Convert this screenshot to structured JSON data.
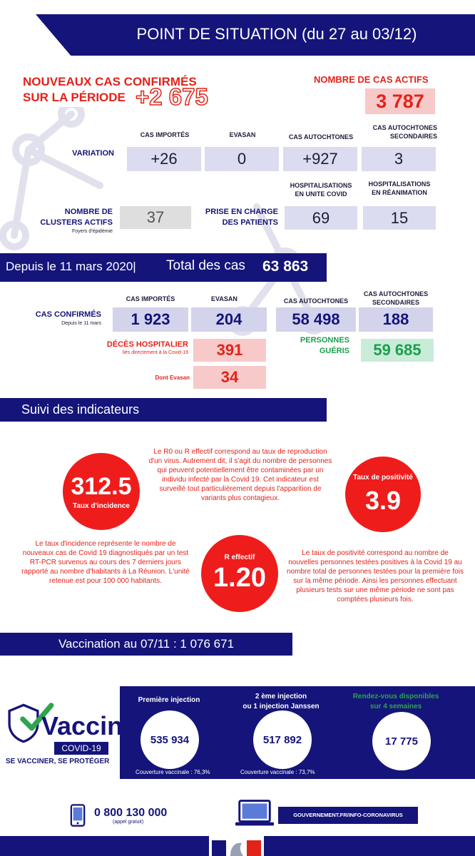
{
  "header": {
    "title": "POINT DE SITUATION (du 27 au 03/12)"
  },
  "period": {
    "new_cases_label_1": "NOUVEAUX CAS CONFIRMÉS",
    "new_cases_label_2": "SUR LA PÉRIODE",
    "new_cases_value": "+2 675",
    "active_label": "NOMBRE DE CAS ACTIFS",
    "active_value": "3 787",
    "col_imported": "CAS IMPORTÉS",
    "col_evasan": "EVASAN",
    "col_autochtones": "CAS AUTOCHTONES",
    "col_secondaires_1": "CAS AUTOCHTONES",
    "col_secondaires_2": "SECONDAIRES",
    "variation_label": "VARIATION",
    "variation_imported": "+26",
    "variation_evasan": "0",
    "variation_autochtones": "+927",
    "variation_secondaires": "3",
    "hosp_covid_1": "HOSPITALISATIONS",
    "hosp_covid_2": "EN UNITE COVID",
    "hosp_rea_1": "HOSPITALISATIONS",
    "hosp_rea_2": "EN RÉANIMATION",
    "clusters_label_1": "NOMBRE DE",
    "clusters_label_2": "CLUSTERS ACTIFS",
    "clusters_sub": "Foyers d'épidémie",
    "clusters_value": "37",
    "prise_label_1": "PRISE EN CHARGE",
    "prise_label_2": "DES PATIENTS",
    "hosp_covid_value": "69",
    "hosp_rea_value": "15"
  },
  "total": {
    "since_label": "Depuis le 11 mars 2020",
    "total_label": "Total des cas",
    "total_value": "63 863",
    "col_imported": "CAS IMPORTÉS",
    "col_evasan": "EVASAN",
    "col_autochtones": "CAS AUTOCHTONES",
    "col_secondaires_1": "CAS AUTOCHTONES",
    "col_secondaires_2": "SECONDAIRES",
    "confirmed_label": "CAS CONFIRMÉS",
    "confirmed_sub": "Depuis le 11 mars",
    "imported_value": "1 923",
    "evasan_value": "204",
    "autochtones_value": "58 498",
    "secondaires_value": "188",
    "deces_label": "DÉCÈS HOSPITALIER",
    "deces_sub": "liés directement à la Covid-19",
    "deces_value": "391",
    "gueris_label_1": "PERSONNES",
    "gueris_label_2": "GUÉRIS",
    "gueris_value": "59 685",
    "dont_evasan_label": "Dont Evasan",
    "dont_evasan_value": "34"
  },
  "indicators": {
    "section_title": "Suivi des indicateurs",
    "incidence_value": "312.5",
    "incidence_label": "Taux d'incidence",
    "positivity_label": "Taux de positivité",
    "positivity_value": "3.9",
    "r_label": "R effectif",
    "r_value": "1.20",
    "r_text": "Le R0 ou R effectif correspond au taux de reproduction d'un virus. Autrement dit, il s'agit du nombre de personnes qui peuvent potentiellement être contaminées par un individu infecté par la Covid 19. Cet indicateur est surveillé tout particulièrement depuis l'apparition de variants plus contagieux.",
    "incidence_text": "Le taux d'incidence représente le nombre de nouveaux cas de Covid 19 diagnostiqués par un test  RT-PCR survenus au cours des 7 derniers jours rapporté au nombre d'habitants à La Réunion. L'unité retenue est pour 100 000 habitants.",
    "positivity_text": "Le taux de positivité correspond au nombre de nouvelles personnes testées positives à la Covid 19 au nombre total de personnes testées pour la première fois sur la même période. Ainsi les personnes effectuant plusieurs tests sur une même période ne sont pas comptées plusieurs fois."
  },
  "vaccination": {
    "title": "Vaccination au 07/11 : 1 076 671",
    "logo_word": "Vaccin",
    "logo_badge": "COVID-19",
    "logo_tagline": "SE VACCINER, SE PROTÉGER",
    "first_label": "Première injection",
    "first_value": "535 934",
    "first_coverage": "Couverture vaccinale : 76,3%",
    "second_label_1": "2 ème injection",
    "second_label_2": "ou 1 injection Janssen",
    "second_value": "517 892",
    "second_coverage": "Couverture vaccinale : 73,7%",
    "rdv_label_1": "Rendez-vous disponibles",
    "rdv_label_2": "sur 4 semaines",
    "rdv_value": "17 775"
  },
  "footer": {
    "phone": "0 800 130 000",
    "phone_sub": "(appel gratuit)",
    "website": "GOUVERNEMENT.FR/INFO-CORONAVIRUS"
  },
  "colors": {
    "navy": "#14147a",
    "red": "#ef1c1c",
    "green": "#1c9e4e",
    "lavender": "#dcdcf0"
  },
  "icons": [
    "virus-network-icon",
    "checkmark-icon",
    "phone-icon",
    "laptop-icon",
    "marianne-icon"
  ]
}
